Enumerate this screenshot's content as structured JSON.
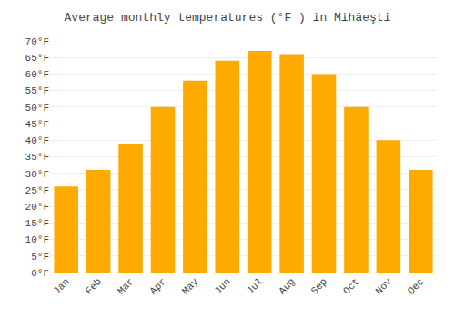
{
  "chart_data": {
    "type": "bar",
    "title": "Average monthly temperatures (°F ) in Mihăeşti",
    "categories": [
      "Jan",
      "Feb",
      "Mar",
      "Apr",
      "May",
      "Jun",
      "Jul",
      "Aug",
      "Sep",
      "Oct",
      "Nov",
      "Dec"
    ],
    "values": [
      26,
      31,
      39,
      50,
      58,
      64,
      67,
      66,
      60,
      50,
      40,
      31
    ],
    "color": "#FFAA00",
    "ylim": [
      0,
      70
    ],
    "yticks": [
      {
        "value": 0,
        "label": "0°F"
      },
      {
        "value": 5,
        "label": "5°F"
      },
      {
        "value": 10,
        "label": "10°F"
      },
      {
        "value": 15,
        "label": "15°F"
      },
      {
        "value": 20,
        "label": "20°F"
      },
      {
        "value": 25,
        "label": "25°F"
      },
      {
        "value": 30,
        "label": "30°F"
      },
      {
        "value": 35,
        "label": "35°F"
      },
      {
        "value": 40,
        "label": "40°F"
      },
      {
        "value": 45,
        "label": "45°F"
      },
      {
        "value": 50,
        "label": "50°F"
      },
      {
        "value": 55,
        "label": "55°F"
      },
      {
        "value": 60,
        "label": "60°F"
      },
      {
        "value": 65,
        "label": "65°F"
      },
      {
        "value": 70,
        "label": "70°F"
      }
    ],
    "grid": true
  }
}
